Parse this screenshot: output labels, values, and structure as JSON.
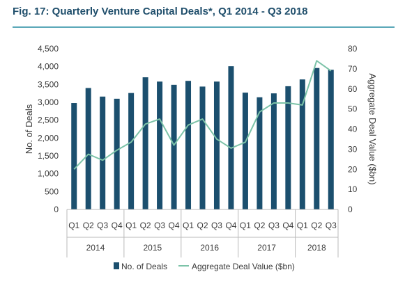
{
  "title": "Fig. 17: Quarterly Venture Capital Deals*, Q1 2014 - Q3 2018",
  "colors": {
    "bars": "#1b4f6e",
    "line": "#7cc3a8",
    "title": "#1f4e6b",
    "rule": "#5aa7b8"
  },
  "chart_data": {
    "type": "bar",
    "categories": [
      "Q1",
      "Q2",
      "Q3",
      "Q4",
      "Q1",
      "Q2",
      "Q3",
      "Q4",
      "Q1",
      "Q2",
      "Q3",
      "Q4",
      "Q1",
      "Q2",
      "Q3",
      "Q4",
      "Q1",
      "Q2",
      "Q3"
    ],
    "years": [
      {
        "label": "2014",
        "count": 4
      },
      {
        "label": "2015",
        "count": 4
      },
      {
        "label": "2016",
        "count": 4
      },
      {
        "label": "2017",
        "count": 4
      },
      {
        "label": "2018",
        "count": 3
      }
    ],
    "series": [
      {
        "name": "No. of Deals",
        "type": "bar",
        "axis": "left",
        "values": [
          2980,
          3400,
          3160,
          3100,
          3260,
          3700,
          3580,
          3490,
          3600,
          3440,
          3580,
          4010,
          3270,
          3140,
          3250,
          3450,
          3640,
          3960,
          3910
        ]
      },
      {
        "name": "Aggregate Deal Value ($bn)",
        "type": "line",
        "axis": "right",
        "values": [
          20,
          27.5,
          24.5,
          29.5,
          33.5,
          42.5,
          45,
          32,
          42,
          45,
          35,
          30.5,
          33.5,
          48.5,
          53,
          53,
          52,
          74,
          69
        ]
      }
    ],
    "ylabel": "No. of Deals",
    "ylabel_right": "Aggregate Deal Value ($bn)",
    "ylim": [
      0,
      4500
    ],
    "ylim_right": [
      0,
      80
    ],
    "yticks": [
      "0",
      "500",
      "1,000",
      "1,500",
      "2,000",
      "2,500",
      "3,000",
      "3,500",
      "4,000",
      "4,500"
    ],
    "yticks_right": [
      "0",
      "10",
      "20",
      "30",
      "40",
      "50",
      "60",
      "70",
      "80"
    ],
    "grid": false,
    "legend": "bottom"
  }
}
